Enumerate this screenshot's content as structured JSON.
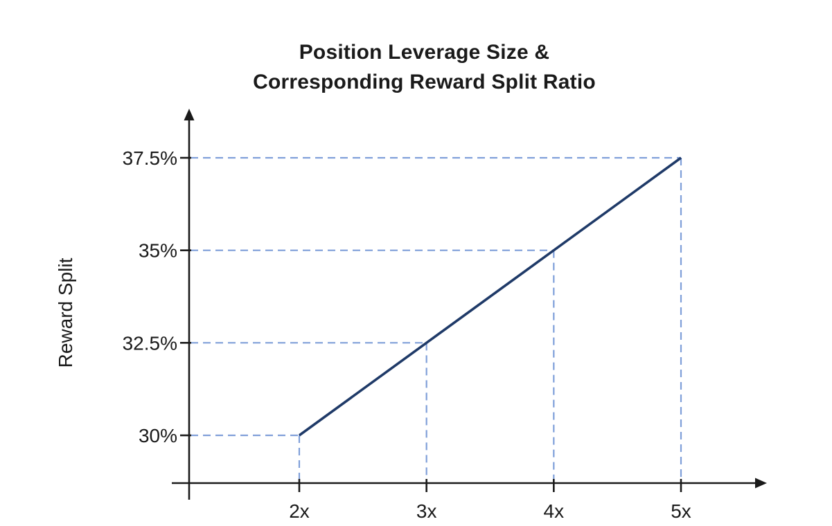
{
  "title": {
    "line1": "Position Leverage Size &",
    "line2": "Corresponding Reward Split Ratio"
  },
  "chart_data": {
    "type": "line",
    "title": "Position Leverage Size & Corresponding Reward Split Ratio",
    "xlabel": "",
    "ylabel": "Reward Split",
    "categories": [
      "2x",
      "3x",
      "4x",
      "5x"
    ],
    "x_values": [
      2,
      3,
      4,
      5
    ],
    "series": [
      {
        "name": "Reward Split",
        "values": [
          30,
          32.5,
          35,
          37.5
        ]
      }
    ],
    "ytick_labels": [
      "30%",
      "32.5%",
      "35%",
      "37.5%"
    ],
    "ytick_values": [
      30,
      32.5,
      35,
      37.5
    ],
    "ylim": [
      28.7,
      38.8
    ],
    "grid": "dashed guide lines from each data point to both axes",
    "legend_position": "none",
    "colors": {
      "line": "#1f3a68",
      "guide_dash": "#7f9fd9",
      "axis": "#1a1a1a",
      "text": "#1a1a1a",
      "background": "#ffffff"
    }
  }
}
